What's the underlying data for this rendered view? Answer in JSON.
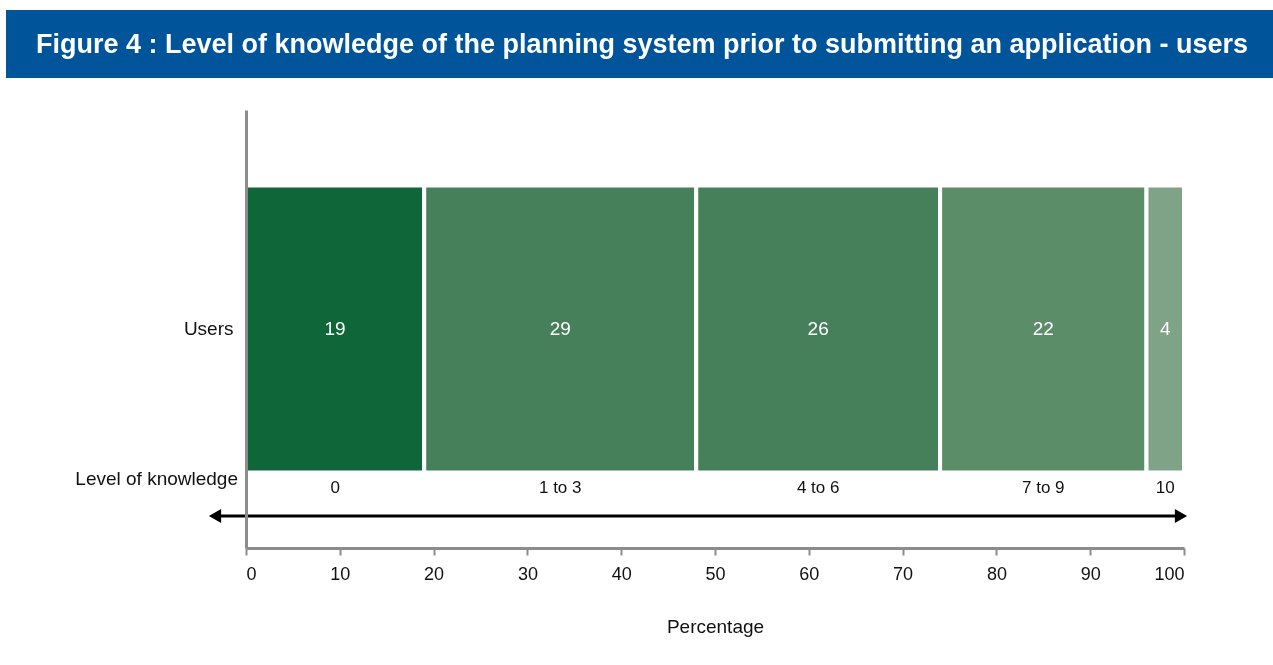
{
  "chart_data": {
    "type": "bar",
    "orientation": "horizontal",
    "stacked": true,
    "title": "Figure 4 : Level of knowledge of the planning system prior to submitting an application - users",
    "xlabel": "Percentage",
    "categories": [
      "Users"
    ],
    "series": [
      {
        "name": "0",
        "color": "#0f6739",
        "values": [
          19
        ]
      },
      {
        "name": "1 to 3",
        "color": "#45805a",
        "values": [
          29
        ]
      },
      {
        "name": "4 to 6",
        "color": "#45805a",
        "values": [
          26
        ]
      },
      {
        "name": "7 to 9",
        "color": "#5c8d69",
        "values": [
          22
        ]
      },
      {
        "name": "10",
        "color": "#7fa386",
        "values": [
          4
        ]
      }
    ],
    "xlim": [
      0,
      100
    ],
    "xticks": [
      0,
      10,
      20,
      30,
      40,
      50,
      60,
      70,
      80,
      90,
      100
    ],
    "data_labels": true,
    "annotations": [
      "Level of knowledge"
    ]
  }
}
